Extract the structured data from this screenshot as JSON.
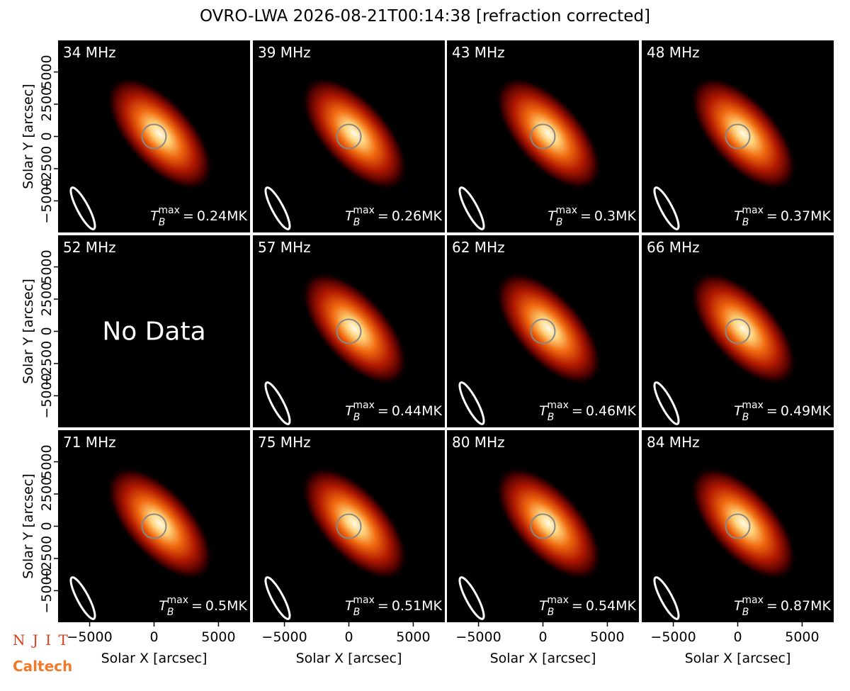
{
  "title": "OVRO-LWA 2026-08-21T00:14:38 [refraction corrected]",
  "logos": [
    "N J I T",
    "Caltech"
  ],
  "chart_data": [
    {
      "type": "image",
      "title": "34 MHz",
      "values": [
        0.24
      ],
      "value_labels": [
        "0.24MK"
      ],
      "value_symbol": {
        "base": "T",
        "sub": "B",
        "sup": "max",
        "relation": "="
      },
      "xlim": [
        -7450,
        7450
      ],
      "ylim": [
        -7450,
        7450
      ],
      "ylabel": "Solar Y [arcsec]",
      "yticks": [
        {
          "value": -5000,
          "label": "−5000"
        },
        {
          "value": -2500,
          "label": "−2500"
        },
        0,
        2500,
        5000
      ]
    },
    {
      "type": "image",
      "title": "39 MHz",
      "values": [
        0.26
      ],
      "value_labels": [
        "0.26MK"
      ],
      "value_symbol": {
        "base": "T",
        "sub": "B",
        "sup": "max",
        "relation": "="
      },
      "xlim": [
        -7450,
        7450
      ],
      "ylim": [
        -7450,
        7450
      ]
    },
    {
      "type": "image",
      "title": "43 MHz",
      "values": [
        0.3
      ],
      "value_labels": [
        "0.3MK"
      ],
      "value_symbol": {
        "base": "T",
        "sub": "B",
        "sup": "max",
        "relation": "="
      },
      "xlim": [
        -7450,
        7450
      ],
      "ylim": [
        -7450,
        7450
      ]
    },
    {
      "type": "image",
      "title": "48 MHz",
      "values": [
        0.37
      ],
      "value_labels": [
        "0.37MK"
      ],
      "value_symbol": {
        "base": "T",
        "sub": "B",
        "sup": "max",
        "relation": "="
      },
      "xlim": [
        -7450,
        7450
      ],
      "ylim": [
        -7450,
        7450
      ]
    },
    {
      "type": "image",
      "title": "52 MHz",
      "note": "No Data",
      "xlim": [
        -7450,
        7450
      ],
      "ylim": [
        -7450,
        7450
      ],
      "ylabel": "Solar Y [arcsec]",
      "yticks": [
        {
          "value": -5000,
          "label": "−5000"
        },
        {
          "value": -2500,
          "label": "−2500"
        },
        0,
        2500,
        5000
      ]
    },
    {
      "type": "image",
      "title": "57 MHz",
      "values": [
        0.44
      ],
      "value_labels": [
        "0.44MK"
      ],
      "value_symbol": {
        "base": "T",
        "sub": "B",
        "sup": "max",
        "relation": "="
      },
      "xlim": [
        -7450,
        7450
      ],
      "ylim": [
        -7450,
        7450
      ]
    },
    {
      "type": "image",
      "title": "62 MHz",
      "values": [
        0.46
      ],
      "value_labels": [
        "0.46MK"
      ],
      "value_symbol": {
        "base": "T",
        "sub": "B",
        "sup": "max",
        "relation": "="
      },
      "xlim": [
        -7450,
        7450
      ],
      "ylim": [
        -7450,
        7450
      ]
    },
    {
      "type": "image",
      "title": "66 MHz",
      "values": [
        0.49
      ],
      "value_labels": [
        "0.49MK"
      ],
      "value_symbol": {
        "base": "T",
        "sub": "B",
        "sup": "max",
        "relation": "="
      },
      "xlim": [
        -7450,
        7450
      ],
      "ylim": [
        -7450,
        7450
      ]
    },
    {
      "type": "image",
      "title": "71 MHz",
      "values": [
        0.5
      ],
      "value_labels": [
        "0.5MK"
      ],
      "value_symbol": {
        "base": "T",
        "sub": "B",
        "sup": "max",
        "relation": "="
      },
      "xlim": [
        -7450,
        7450
      ],
      "ylim": [
        -7450,
        7450
      ],
      "ylabel": "Solar Y [arcsec]",
      "yticks": [
        {
          "value": -5000,
          "label": "−5000"
        },
        {
          "value": -2500,
          "label": "−2500"
        },
        0,
        2500,
        5000
      ],
      "xlabel": "Solar X [arcsec]",
      "xticks": [
        {
          "value": -5000,
          "label": "−5000"
        },
        0,
        5000
      ]
    },
    {
      "type": "image",
      "title": "75 MHz",
      "values": [
        0.51
      ],
      "value_labels": [
        "0.51MK"
      ],
      "value_symbol": {
        "base": "T",
        "sub": "B",
        "sup": "max",
        "relation": "="
      },
      "xlim": [
        -7450,
        7450
      ],
      "ylim": [
        -7450,
        7450
      ],
      "xlabel": "Solar X [arcsec]",
      "xticks": [
        {
          "value": -5000,
          "label": "−5000"
        },
        0,
        5000
      ]
    },
    {
      "type": "image",
      "title": "80 MHz",
      "values": [
        0.54
      ],
      "value_labels": [
        "0.54MK"
      ],
      "value_symbol": {
        "base": "T",
        "sub": "B",
        "sup": "max",
        "relation": "="
      },
      "xlim": [
        -7450,
        7450
      ],
      "ylim": [
        -7450,
        7450
      ],
      "xlabel": "Solar X [arcsec]",
      "xticks": [
        {
          "value": -5000,
          "label": "−5000"
        },
        0,
        5000
      ]
    },
    {
      "type": "image",
      "title": "84 MHz",
      "values": [
        0.87
      ],
      "value_labels": [
        "0.87MK"
      ],
      "value_symbol": {
        "base": "T",
        "sub": "B",
        "sup": "max",
        "relation": "="
      },
      "xlim": [
        -7450,
        7450
      ],
      "ylim": [
        -7450,
        7450
      ],
      "xlabel": "Solar X [arcsec]",
      "xticks": [
        {
          "value": -5000,
          "label": "−5000"
        },
        0,
        5000
      ]
    }
  ]
}
